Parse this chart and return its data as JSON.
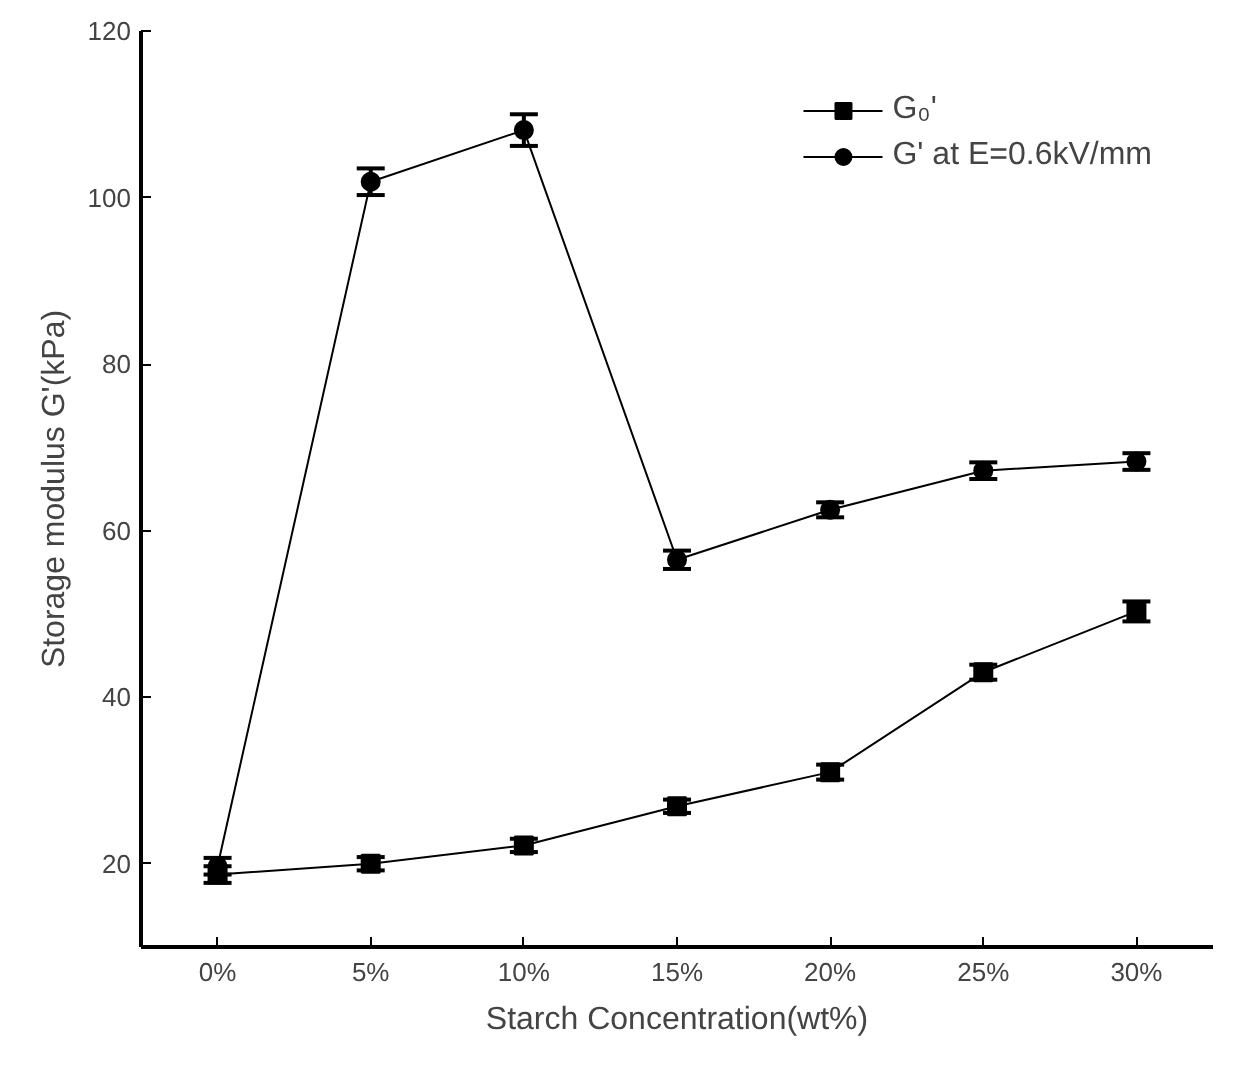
{
  "chart_data": {
    "type": "line",
    "xlabel": "Starch Concentration(wt%)",
    "ylabel": "Storage modulus G'(kPa)",
    "categories": [
      "0%",
      "5%",
      "10%",
      "15%",
      "20%",
      "25%",
      "30%"
    ],
    "series": [
      {
        "name": "G₀'",
        "color": "#000000",
        "marker": "square",
        "values": [
          18.7,
          20.0,
          22.2,
          26.9,
          31.0,
          43.0,
          50.3
        ],
        "errors": [
          1,
          0.8,
          0.8,
          0.8,
          0.9,
          0.9,
          1.2
        ]
      },
      {
        "name": "G' at E=0.6kV/mm",
        "color": "#000000",
        "marker": "circle",
        "values": [
          19.7,
          101.9,
          108.1,
          56.5,
          62.5,
          67.2,
          68.3
        ],
        "errors": [
          1,
          1.6,
          1.9,
          1.1,
          0.9,
          1.0,
          1.0
        ]
      }
    ],
    "ylim": [
      10,
      120
    ],
    "yticks": [
      20,
      40,
      60,
      80,
      100,
      120
    ],
    "grid": false,
    "legend": "top right",
    "line_style": "solid"
  }
}
